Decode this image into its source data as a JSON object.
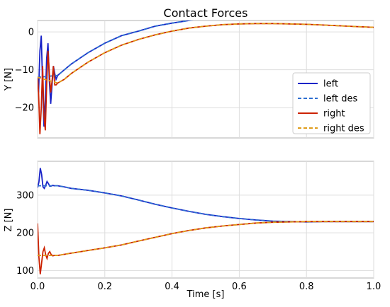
{
  "chart_data": [
    {
      "type": "line",
      "title": "Contact Forces",
      "xlabel": "",
      "ylabel": "Y [N]",
      "xlim": [
        0.0,
        1.0
      ],
      "ylim": [
        -28,
        3
      ],
      "xticks": [
        0.0,
        0.2,
        0.4,
        0.6,
        0.8,
        1.0
      ],
      "xtick_labels": [
        "",
        "",
        "",
        "",
        "",
        ""
      ],
      "yticks": [
        0,
        -10,
        -20
      ],
      "ytick_labels": [
        "0",
        "−10",
        "−20"
      ],
      "grid": true,
      "legend": {
        "placement": "right-middle",
        "entries": [
          "left",
          "left des",
          "right",
          "right des"
        ]
      },
      "series": [
        {
          "name": "left",
          "color": "#1a24c8",
          "style": "solid",
          "x": [
            0.0,
            0.003,
            0.007,
            0.011,
            0.015,
            0.019,
            0.023,
            0.027,
            0.031,
            0.035,
            0.039,
            0.043,
            0.047,
            0.051,
            0.055,
            0.06,
            0.08,
            0.1,
            0.15,
            0.2,
            0.25,
            0.3,
            0.35,
            0.4,
            0.45,
            0.5,
            0.55,
            0.6,
            0.65,
            0.7,
            0.75,
            0.8,
            0.85,
            0.9,
            0.95,
            1.0
          ],
          "y": [
            -12,
            -16,
            -5,
            -1,
            -14,
            -25,
            -18,
            -7,
            -3,
            -13,
            -19,
            -14,
            -9,
            -11,
            -12.5,
            -11.5,
            -10,
            -8.5,
            -5.5,
            -3,
            -1,
            0.2,
            1.5,
            2.3,
            3.0,
            3.6,
            4.0,
            4.3,
            4.5,
            4.6,
            4.7,
            4.7,
            4.6,
            4.5,
            4.3,
            4.1
          ]
        },
        {
          "name": "left des",
          "color": "#2e6fd0",
          "style": "dashed",
          "x": [
            0.0,
            0.06,
            0.08,
            0.1,
            0.15,
            0.2,
            0.25,
            0.3,
            0.35,
            0.4,
            0.45,
            0.5,
            0.55,
            0.6,
            0.65,
            0.7,
            0.75,
            0.8,
            0.85,
            0.9,
            0.95,
            1.0
          ],
          "y": [
            -12,
            -11.5,
            -10,
            -8.5,
            -5.5,
            -3,
            -1,
            0.2,
            1.5,
            2.3,
            3.0,
            3.6,
            4.0,
            4.3,
            4.5,
            4.6,
            4.7,
            4.7,
            4.6,
            4.5,
            4.3,
            4.1
          ]
        },
        {
          "name": "right",
          "color": "#cc2200",
          "style": "solid",
          "x": [
            0.0,
            0.003,
            0.007,
            0.011,
            0.015,
            0.019,
            0.023,
            0.027,
            0.031,
            0.035,
            0.039,
            0.043,
            0.047,
            0.051,
            0.055,
            0.06,
            0.08,
            0.1,
            0.15,
            0.2,
            0.25,
            0.3,
            0.35,
            0.4,
            0.45,
            0.5,
            0.55,
            0.6,
            0.65,
            0.7,
            0.75,
            0.8,
            0.85,
            0.9,
            0.95,
            1.0
          ],
          "y": [
            -12,
            -16,
            -27,
            -20,
            -9,
            -22,
            -26,
            -14,
            -5,
            -11,
            -16,
            -13,
            -9,
            -14,
            -14,
            -13.5,
            -12.5,
            -11,
            -8,
            -5.5,
            -3.5,
            -2,
            -0.8,
            0.2,
            1.0,
            1.5,
            1.9,
            2.1,
            2.2,
            2.2,
            2.1,
            2.0,
            1.8,
            1.6,
            1.4,
            1.2
          ]
        },
        {
          "name": "right des",
          "color": "#e09c1a",
          "style": "dashed",
          "x": [
            0.0,
            0.06,
            0.08,
            0.1,
            0.15,
            0.2,
            0.25,
            0.3,
            0.35,
            0.4,
            0.45,
            0.5,
            0.55,
            0.6,
            0.65,
            0.7,
            0.75,
            0.8,
            0.85,
            0.9,
            0.95,
            1.0
          ],
          "y": [
            -12,
            -13.5,
            -12.5,
            -11,
            -8,
            -5.5,
            -3.5,
            -2,
            -0.8,
            0.2,
            1.0,
            1.5,
            1.9,
            2.1,
            2.2,
            2.2,
            2.1,
            2.0,
            1.8,
            1.6,
            1.4,
            1.2
          ]
        }
      ]
    },
    {
      "type": "line",
      "title": "",
      "xlabel": "Time [s]",
      "ylabel": "Z [N]",
      "xlim": [
        0.0,
        1.0
      ],
      "ylim": [
        80,
        390
      ],
      "xticks": [
        0.0,
        0.2,
        0.4,
        0.6,
        0.8,
        1.0
      ],
      "xtick_labels": [
        "0.0",
        "0.2",
        "0.4",
        "0.6",
        "0.8",
        "1.0"
      ],
      "yticks": [
        100,
        200,
        300
      ],
      "ytick_labels": [
        "100",
        "200",
        "300"
      ],
      "grid": true,
      "series": [
        {
          "name": "left",
          "color": "#1a24c8",
          "style": "solid",
          "x": [
            0.0,
            0.004,
            0.008,
            0.012,
            0.016,
            0.02,
            0.024,
            0.028,
            0.032,
            0.036,
            0.04,
            0.045,
            0.05,
            0.06,
            0.08,
            0.1,
            0.15,
            0.2,
            0.25,
            0.3,
            0.35,
            0.4,
            0.45,
            0.5,
            0.55,
            0.6,
            0.65,
            0.7,
            0.75,
            0.8,
            0.85,
            0.9,
            0.95,
            1.0
          ],
          "y": [
            320,
            335,
            372,
            355,
            322,
            318,
            326,
            336,
            331,
            324,
            324,
            326,
            325,
            325,
            322,
            318,
            313,
            306,
            298,
            287,
            276,
            266,
            257,
            249,
            243,
            238,
            234,
            231,
            230,
            229,
            230,
            230,
            230,
            230
          ]
        },
        {
          "name": "left des",
          "color": "#2e6fd0",
          "style": "dashed",
          "x": [
            0.0,
            0.06,
            0.08,
            0.1,
            0.15,
            0.2,
            0.25,
            0.3,
            0.35,
            0.4,
            0.45,
            0.5,
            0.55,
            0.6,
            0.65,
            0.7,
            0.75,
            0.8,
            0.85,
            0.9,
            0.95,
            1.0
          ],
          "y": [
            325,
            325,
            322,
            318,
            313,
            306,
            298,
            287,
            276,
            266,
            257,
            249,
            243,
            238,
            234,
            231,
            230,
            229,
            230,
            230,
            230,
            230
          ]
        },
        {
          "name": "right",
          "color": "#cc2200",
          "style": "solid",
          "x": [
            0.0,
            0.004,
            0.008,
            0.012,
            0.016,
            0.02,
            0.024,
            0.028,
            0.032,
            0.036,
            0.04,
            0.045,
            0.05,
            0.06,
            0.08,
            0.1,
            0.15,
            0.2,
            0.25,
            0.3,
            0.35,
            0.4,
            0.45,
            0.5,
            0.55,
            0.6,
            0.65,
            0.7,
            0.75,
            0.8,
            0.85,
            0.9,
            0.95,
            1.0
          ],
          "y": [
            225,
            135,
            90,
            120,
            150,
            160,
            142,
            132,
            145,
            150,
            143,
            139,
            140,
            140,
            143,
            146,
            153,
            160,
            168,
            178,
            188,
            198,
            206,
            213,
            218,
            222,
            226,
            228,
            229,
            230,
            230,
            230,
            230,
            230
          ]
        },
        {
          "name": "right des",
          "color": "#e09c1a",
          "style": "dashed",
          "x": [
            0.0,
            0.06,
            0.08,
            0.1,
            0.15,
            0.2,
            0.25,
            0.3,
            0.35,
            0.4,
            0.45,
            0.5,
            0.55,
            0.6,
            0.65,
            0.7,
            0.75,
            0.8,
            0.85,
            0.9,
            0.95,
            1.0
          ],
          "y": [
            140,
            140,
            143,
            146,
            153,
            160,
            168,
            178,
            188,
            198,
            206,
            213,
            218,
            222,
            226,
            228,
            229,
            230,
            230,
            230,
            230,
            230
          ]
        }
      ]
    }
  ]
}
